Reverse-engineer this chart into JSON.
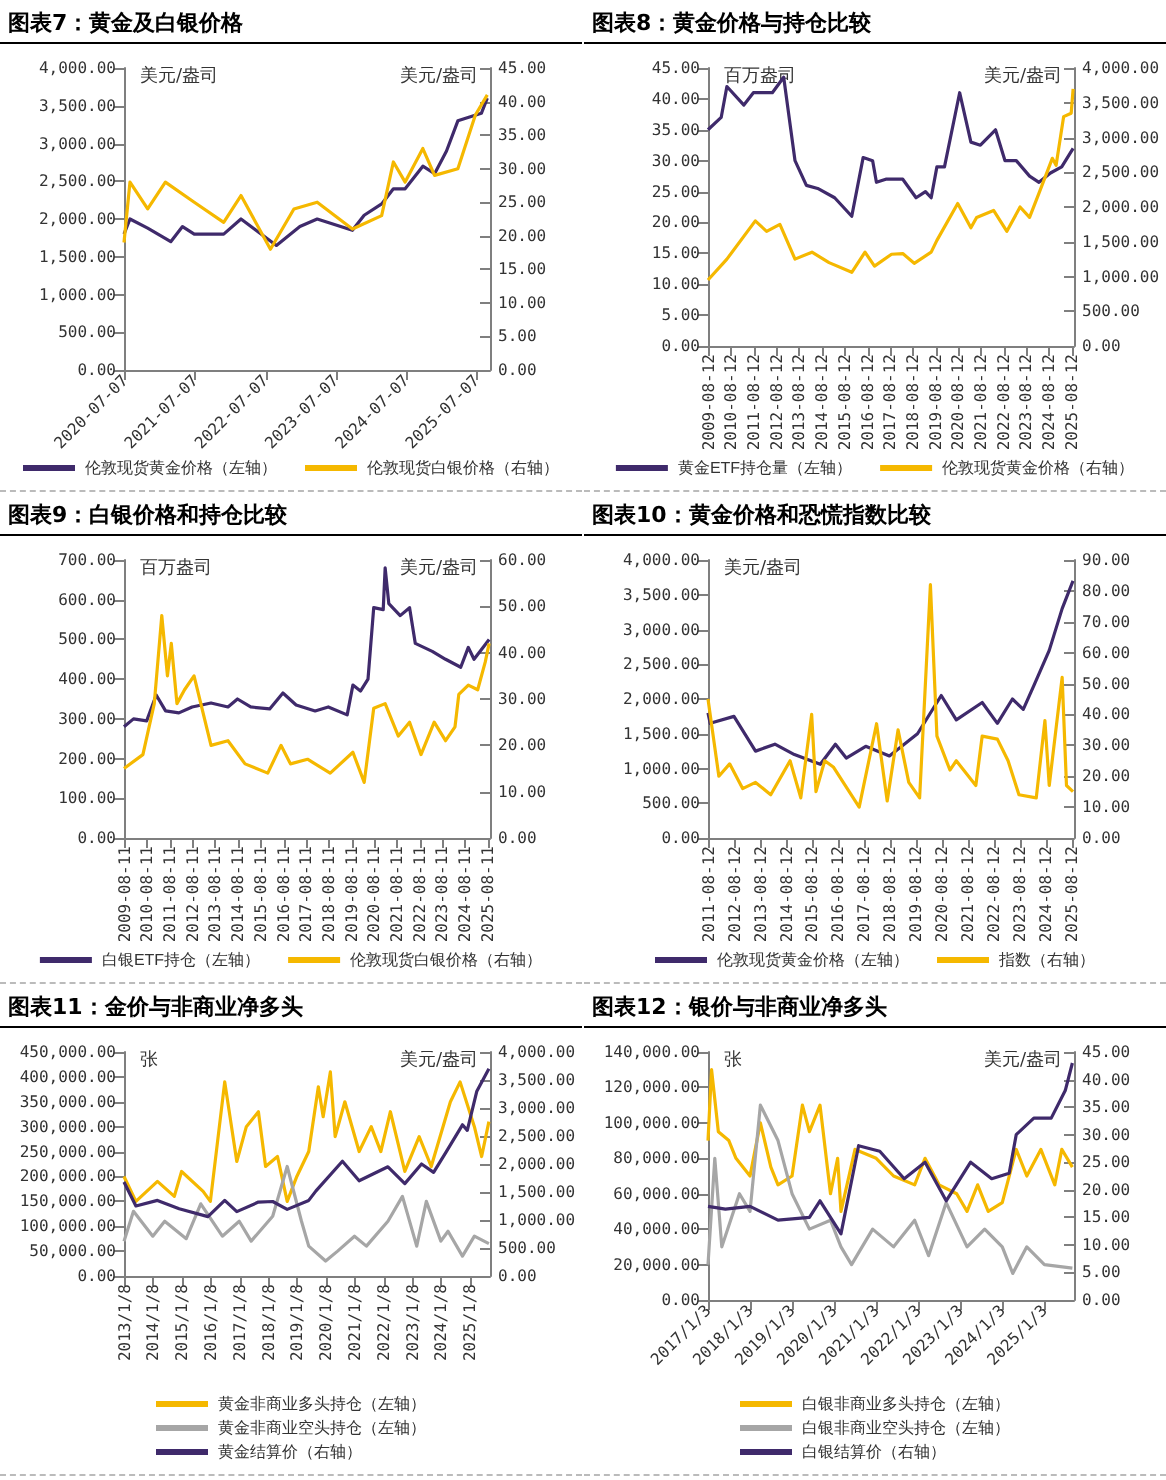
{
  "chart_data": [
    {
      "type": "line",
      "title": "图表7：黄金及白银价格",
      "annotations": [
        "美元/盎司",
        "美元/盎司"
      ],
      "legend": "bottom",
      "grid": false,
      "marker": "none",
      "xlim": [
        "2020-07-01",
        "2025-09-15"
      ],
      "xticks": [
        "2020-07-07",
        "2021-07-07",
        "2022-07-07",
        "2023-07-07",
        "2024-07-07",
        "2025-07-07"
      ],
      "ylim": [
        0,
        4000
      ],
      "yticks": [
        {
          "value": 0,
          "label": "0.00"
        },
        {
          "value": 500,
          "label": "500.00"
        },
        {
          "value": 1000,
          "label": "1,000.00"
        },
        {
          "value": 1500,
          "label": "1,500.00"
        },
        {
          "value": 2000,
          "label": "2,000.00"
        },
        {
          "value": 2500,
          "label": "2,500.00"
        },
        {
          "value": 3000,
          "label": "3,000.00"
        },
        {
          "value": 3500,
          "label": "3,500.00"
        },
        {
          "value": 4000,
          "label": "4,000.00"
        }
      ],
      "y2lim": [
        0,
        45
      ],
      "y2ticks": [
        {
          "value": 0,
          "label": "0.00"
        },
        {
          "value": 5,
          "label": "5.00"
        },
        {
          "value": 10,
          "label": "10.00"
        },
        {
          "value": 15,
          "label": "15.00"
        },
        {
          "value": 20,
          "label": "20.00"
        },
        {
          "value": 25,
          "label": "25.00"
        },
        {
          "value": 30,
          "label": "30.00"
        },
        {
          "value": 35,
          "label": "35.00"
        },
        {
          "value": 40,
          "label": "40.00"
        },
        {
          "value": 45,
          "label": "45.00"
        }
      ],
      "series": [
        {
          "name": "伦敦现货黄金价格（左轴）",
          "color": "#3f2a6b",
          "x": [
            "2020-07",
            "2020-08",
            "2020-11",
            "2021-03",
            "2021-05",
            "2021-07",
            "2021-12",
            "2022-03",
            "2022-09",
            "2023-01",
            "2023-04",
            "2023-10",
            "2023-12",
            "2024-03",
            "2024-05",
            "2024-07",
            "2024-10",
            "2024-12",
            "2025-02",
            "2025-04",
            "2025-06",
            "2025-08",
            "2025-09"
          ],
          "values": [
            1800,
            2000,
            1880,
            1700,
            1900,
            1800,
            1800,
            2000,
            1650,
            1900,
            2000,
            1850,
            2050,
            2200,
            2400,
            2400,
            2700,
            2600,
            2900,
            3300,
            3350,
            3400,
            3600
          ]
        },
        {
          "name": "伦敦现货白银价格（右轴）",
          "color": "#f5b800",
          "axis": "y2",
          "x": [
            "2020-07",
            "2020-08",
            "2020-11",
            "2021-02",
            "2021-07",
            "2021-12",
            "2022-03",
            "2022-08",
            "2022-12",
            "2023-04",
            "2023-10",
            "2024-03",
            "2024-05",
            "2024-07",
            "2024-10",
            "2024-12",
            "2025-04",
            "2025-07",
            "2025-09"
          ],
          "values": [
            19,
            28,
            24,
            28,
            25,
            22,
            26,
            18,
            24,
            25,
            21,
            23,
            31,
            28,
            33,
            29,
            30,
            38,
            41
          ]
        }
      ]
    },
    {
      "type": "line",
      "title": "图表8：黄金价格与持仓比较",
      "annotations": [
        "百万盎司",
        "美元/盎司"
      ],
      "legend": "bottom",
      "grid": false,
      "marker": "none",
      "xlim": [
        "2009-08-01",
        "2025-09-15"
      ],
      "xticks": [
        "2009-08-12",
        "2010-08-12",
        "2011-08-12",
        "2012-08-12",
        "2013-08-12",
        "2014-08-12",
        "2015-08-12",
        "2016-08-12",
        "2017-08-12",
        "2018-08-12",
        "2019-08-12",
        "2020-08-12",
        "2021-08-12",
        "2022-08-12",
        "2023-08-12",
        "2024-08-12",
        "2025-08-12"
      ],
      "ylim": [
        0,
        45
      ],
      "yticks": [
        {
          "value": 0,
          "label": "0.00"
        },
        {
          "value": 5,
          "label": "5.00"
        },
        {
          "value": 10,
          "label": "10.00"
        },
        {
          "value": 15,
          "label": "15.00"
        },
        {
          "value": 20,
          "label": "20.00"
        },
        {
          "value": 25,
          "label": "25.00"
        },
        {
          "value": 30,
          "label": "30.00"
        },
        {
          "value": 35,
          "label": "35.00"
        },
        {
          "value": 40,
          "label": "40.00"
        },
        {
          "value": 45,
          "label": "45.00"
        }
      ],
      "y2lim": [
        0,
        4000
      ],
      "y2ticks": [
        {
          "value": 0,
          "label": "0.00"
        },
        {
          "value": 500,
          "label": "500.00"
        },
        {
          "value": 1000,
          "label": "1,000.00"
        },
        {
          "value": 1500,
          "label": "1,500.00"
        },
        {
          "value": 2000,
          "label": "2,000.00"
        },
        {
          "value": 2500,
          "label": "2,500.00"
        },
        {
          "value": 3000,
          "label": "3,000.00"
        },
        {
          "value": 3500,
          "label": "3,500.00"
        },
        {
          "value": 4000,
          "label": "4,000.00"
        }
      ],
      "series": [
        {
          "name": "黄金ETF持仓量（左轴）",
          "color": "#3f2a6b",
          "x": [
            "2009-08",
            "2010-03",
            "2010-06",
            "2011-03",
            "2011-08",
            "2012-06",
            "2012-12",
            "2013-06",
            "2013-12",
            "2014-06",
            "2015-03",
            "2015-12",
            "2016-06",
            "2016-11",
            "2017-01",
            "2017-06",
            "2018-03",
            "2018-10",
            "2019-03",
            "2019-06",
            "2019-09",
            "2020-01",
            "2020-09",
            "2021-03",
            "2021-08",
            "2022-04",
            "2022-09",
            "2023-03",
            "2023-10",
            "2024-03",
            "2024-09",
            "2025-03",
            "2025-09"
          ],
          "values": [
            35,
            37,
            42,
            39,
            41,
            41,
            43.5,
            30,
            26,
            25.5,
            24,
            21,
            30.5,
            30,
            26.5,
            27,
            27,
            24,
            25,
            24,
            29,
            29,
            41,
            33,
            32.5,
            35,
            30,
            30,
            27.5,
            26.5,
            28,
            29,
            32
          ]
        },
        {
          "name": "伦敦现货黄金价格（右轴）",
          "color": "#f5b800",
          "axis": "y2",
          "x": [
            "2009-08",
            "2010-06",
            "2011-09",
            "2012-03",
            "2012-10",
            "2013-06",
            "2014-03",
            "2014-12",
            "2015-12",
            "2016-07",
            "2016-12",
            "2017-09",
            "2018-03",
            "2018-09",
            "2019-06",
            "2019-09",
            "2020-08",
            "2021-03",
            "2021-06",
            "2022-03",
            "2022-10",
            "2023-05",
            "2023-10",
            "2024-03",
            "2024-10",
            "2024-12",
            "2025-04",
            "2025-08",
            "2025-09"
          ],
          "values": [
            950,
            1250,
            1800,
            1650,
            1750,
            1250,
            1350,
            1200,
            1060,
            1350,
            1150,
            1320,
            1330,
            1190,
            1350,
            1520,
            2050,
            1700,
            1850,
            1950,
            1650,
            2000,
            1850,
            2200,
            2700,
            2600,
            3300,
            3350,
            3700
          ]
        }
      ]
    },
    {
      "type": "line",
      "title": "图表9：白银价格和持仓比较",
      "annotations": [
        "百万盎司",
        "美元/盎司"
      ],
      "legend": "bottom",
      "grid": false,
      "marker": "none",
      "xlim": [
        "2009-08-01",
        "2025-09-15"
      ],
      "xticks": [
        "2009-08-11",
        "2010-08-11",
        "2011-08-11",
        "2012-08-11",
        "2013-08-11",
        "2014-08-11",
        "2015-08-11",
        "2016-08-11",
        "2017-08-11",
        "2018-08-11",
        "2019-08-11",
        "2020-08-11",
        "2021-08-11",
        "2022-08-11",
        "2023-08-11",
        "2024-08-11",
        "2025-08-11"
      ],
      "ylim": [
        0,
        700
      ],
      "yticks": [
        {
          "value": 0,
          "label": "0.00"
        },
        {
          "value": 100,
          "label": "100.00"
        },
        {
          "value": 200,
          "label": "200.00"
        },
        {
          "value": 300,
          "label": "300.00"
        },
        {
          "value": 400,
          "label": "400.00"
        },
        {
          "value": 500,
          "label": "500.00"
        },
        {
          "value": 600,
          "label": "600.00"
        },
        {
          "value": 700,
          "label": "700.00"
        }
      ],
      "y2lim": [
        0,
        60
      ],
      "y2ticks": [
        {
          "value": 0,
          "label": "0.00"
        },
        {
          "value": 10,
          "label": "10.00"
        },
        {
          "value": 20,
          "label": "20.00"
        },
        {
          "value": 30,
          "label": "30.00"
        },
        {
          "value": 40,
          "label": "40.00"
        },
        {
          "value": 50,
          "label": "50.00"
        },
        {
          "value": 60,
          "label": "60.00"
        }
      ],
      "series": [
        {
          "name": "白银ETF持仓（左轴）",
          "color": "#3f2a6b",
          "x": [
            "2009-08",
            "2010-01",
            "2010-08",
            "2011-01",
            "2011-06",
            "2012-01",
            "2012-08",
            "2013-06",
            "2014-03",
            "2014-08",
            "2015-03",
            "2016-01",
            "2016-08",
            "2017-03",
            "2018-01",
            "2018-08",
            "2019-06",
            "2019-09",
            "2020-01",
            "2020-05",
            "2020-08",
            "2021-01",
            "2021-02",
            "2021-04",
            "2021-10",
            "2022-03",
            "2022-06",
            "2023-03",
            "2023-10",
            "2024-06",
            "2024-10",
            "2025-01",
            "2025-09"
          ],
          "values": [
            280,
            300,
            295,
            360,
            320,
            315,
            330,
            340,
            330,
            350,
            330,
            325,
            365,
            335,
            320,
            330,
            310,
            385,
            370,
            400,
            580,
            575,
            680,
            590,
            560,
            580,
            490,
            470,
            450,
            430,
            480,
            450,
            500
          ]
        },
        {
          "name": "伦敦现货白银价格（右轴）",
          "color": "#f5b800",
          "axis": "y2",
          "x": [
            "2009-08",
            "2010-06",
            "2010-12",
            "2011-04",
            "2011-07",
            "2011-09",
            "2011-12",
            "2012-04",
            "2012-09",
            "2013-06",
            "2014-03",
            "2014-12",
            "2015-12",
            "2016-07",
            "2016-12",
            "2017-09",
            "2018-09",
            "2019-09",
            "2020-03",
            "2020-08",
            "2021-02",
            "2021-09",
            "2022-03",
            "2022-09",
            "2023-04",
            "2023-10",
            "2024-03",
            "2024-05",
            "2024-10",
            "2025-03",
            "2025-07",
            "2025-09"
          ],
          "values": [
            15,
            18,
            29,
            48,
            35,
            42,
            29,
            32,
            35,
            20,
            21,
            16,
            14,
            20,
            16,
            17,
            14,
            18.5,
            12,
            28,
            29,
            22,
            25,
            18,
            25,
            21,
            24,
            31,
            33,
            32,
            38,
            42
          ]
        }
      ]
    },
    {
      "type": "line",
      "title": "图表10：黄金价格和恐慌指数比较",
      "annotations": [
        "美元/盎司"
      ],
      "legend": "bottom",
      "grid": false,
      "marker": "none",
      "xlim": [
        "2011-08-01",
        "2025-09-15"
      ],
      "xticks": [
        "2011-08-12",
        "2012-08-12",
        "2013-08-12",
        "2014-08-12",
        "2015-08-12",
        "2016-08-12",
        "2017-08-12",
        "2018-08-12",
        "2019-08-12",
        "2020-08-12",
        "2021-08-12",
        "2022-08-12",
        "2023-08-12",
        "2024-08-12",
        "2025-08-12"
      ],
      "ylim": [
        0,
        4000
      ],
      "yticks": [
        {
          "value": 0,
          "label": "0.00"
        },
        {
          "value": 500,
          "label": "500.00"
        },
        {
          "value": 1000,
          "label": "1,000.00"
        },
        {
          "value": 1500,
          "label": "1,500.00"
        },
        {
          "value": 2000,
          "label": "2,000.00"
        },
        {
          "value": 2500,
          "label": "2,500.00"
        },
        {
          "value": 3000,
          "label": "3,000.00"
        },
        {
          "value": 3500,
          "label": "3,500.00"
        },
        {
          "value": 4000,
          "label": "4,000.00"
        }
      ],
      "y2lim": [
        0,
        90
      ],
      "y2ticks": [
        {
          "value": 0,
          "label": "0.00"
        },
        {
          "value": 10,
          "label": "10.00"
        },
        {
          "value": 20,
          "label": "20.00"
        },
        {
          "value": 30,
          "label": "30.00"
        },
        {
          "value": 40,
          "label": "40.00"
        },
        {
          "value": 50,
          "label": "50.00"
        },
        {
          "value": 60,
          "label": "60.00"
        },
        {
          "value": 70,
          "label": "70.00"
        },
        {
          "value": 80,
          "label": "80.00"
        },
        {
          "value": 90,
          "label": "90.00"
        }
      ],
      "series": [
        {
          "name": "伦敦现货黄金价格（左轴）",
          "color": "#3f2a6b",
          "x": [
            "2011-08",
            "2011-09",
            "2012-08",
            "2013-06",
            "2014-03",
            "2014-12",
            "2015-12",
            "2016-07",
            "2016-12",
            "2017-09",
            "2018-08",
            "2019-09",
            "2020-08",
            "2021-03",
            "2022-03",
            "2022-10",
            "2023-05",
            "2023-10",
            "2024-03",
            "2024-10",
            "2025-04",
            "2025-09"
          ],
          "values": [
            1800,
            1650,
            1750,
            1250,
            1350,
            1200,
            1060,
            1350,
            1150,
            1320,
            1180,
            1500,
            2050,
            1700,
            1950,
            1650,
            2000,
            1850,
            2200,
            2700,
            3300,
            3700
          ]
        },
        {
          "name": "指数（右轴）",
          "color": "#f5b800",
          "axis": "y2",
          "x": [
            "2011-08",
            "2011-10",
            "2012-01",
            "2012-06",
            "2012-12",
            "2013-06",
            "2014-01",
            "2014-10",
            "2015-03",
            "2015-08",
            "2015-10",
            "2016-02",
            "2016-06",
            "2017-06",
            "2018-02",
            "2018-07",
            "2018-12",
            "2019-05",
            "2019-10",
            "2020-03",
            "2020-06",
            "2020-12",
            "2021-03",
            "2021-12",
            "2022-03",
            "2022-10",
            "2023-03",
            "2023-08",
            "2024-04",
            "2024-08",
            "2024-10",
            "2025-04",
            "2025-06",
            "2025-09"
          ],
          "values": [
            45,
            35,
            20,
            24,
            16,
            18,
            14,
            25,
            13,
            40,
            15,
            25,
            23,
            10,
            37,
            12,
            35,
            18,
            13,
            82,
            33,
            22,
            25,
            17,
            33,
            32,
            25,
            14,
            13,
            38,
            17,
            52,
            17,
            15
          ]
        }
      ]
    },
    {
      "type": "line",
      "title": "图表11：金价与非商业净多头",
      "annotations": [
        "张",
        "美元/盎司"
      ],
      "legend": "bottom",
      "grid": false,
      "marker": "none",
      "xlim": [
        "2013-01-01",
        "2025-09-15"
      ],
      "xticks": [
        {
          "value": "2013-01-08",
          "label": "2013/1/8"
        },
        {
          "value": "2014-01-08",
          "label": "2014/1/8"
        },
        {
          "value": "2015-01-08",
          "label": "2015/1/8"
        },
        {
          "value": "2016-01-08",
          "label": "2016/1/8"
        },
        {
          "value": "2017-01-08",
          "label": "2017/1/8"
        },
        {
          "value": "2018-01-08",
          "label": "2018/1/8"
        },
        {
          "value": "2019-01-08",
          "label": "2019/1/8"
        },
        {
          "value": "2020-01-08",
          "label": "2020/1/8"
        },
        {
          "value": "2021-01-08",
          "label": "2021/1/8"
        },
        {
          "value": "2022-01-08",
          "label": "2022/1/8"
        },
        {
          "value": "2023-01-08",
          "label": "2023/1/8"
        },
        {
          "value": "2024-01-08",
          "label": "2024/1/8"
        },
        {
          "value": "2025-01-08",
          "label": "2025/1/8"
        }
      ],
      "ylim": [
        0,
        450000
      ],
      "yticks": [
        {
          "value": 0,
          "label": "0.00"
        },
        {
          "value": 50000,
          "label": "50,000.00"
        },
        {
          "value": 100000,
          "label": "100,000.00"
        },
        {
          "value": 150000,
          "label": "150,000.00"
        },
        {
          "value": 200000,
          "label": "200,000.00"
        },
        {
          "value": 250000,
          "label": "250,000.00"
        },
        {
          "value": 300000,
          "label": "300,000.00"
        },
        {
          "value": 350000,
          "label": "350,000.00"
        },
        {
          "value": 400000,
          "label": "400,000.00"
        },
        {
          "value": 450000,
          "label": "450,000.00"
        }
      ],
      "y2lim": [
        0,
        4000
      ],
      "y2ticks": [
        {
          "value": 0,
          "label": "0.00"
        },
        {
          "value": 500,
          "label": "500.00"
        },
        {
          "value": 1000,
          "label": "1,000.00"
        },
        {
          "value": 1500,
          "label": "1,500.00"
        },
        {
          "value": 2000,
          "label": "2,000.00"
        },
        {
          "value": 2500,
          "label": "2,500.00"
        },
        {
          "value": 3000,
          "label": "3,000.00"
        },
        {
          "value": 3500,
          "label": "3,500.00"
        },
        {
          "value": 4000,
          "label": "4,000.00"
        }
      ],
      "series": [
        {
          "name": "黄金非商业多头持仓（左轴）",
          "color": "#f5b800",
          "x": [
            "2013-01",
            "2013-06",
            "2014-03",
            "2014-10",
            "2015-01",
            "2015-10",
            "2016-01",
            "2016-07",
            "2016-12",
            "2017-04",
            "2017-09",
            "2017-12",
            "2018-05",
            "2018-09",
            "2019-01",
            "2019-06",
            "2019-10",
            "2019-12",
            "2020-03",
            "2020-05",
            "2020-09",
            "2021-03",
            "2021-08",
            "2021-12",
            "2022-04",
            "2022-10",
            "2023-04",
            "2023-09",
            "2024-05",
            "2024-09",
            "2025-03",
            "2025-06",
            "2025-09"
          ],
          "values": [
            200000,
            150000,
            190000,
            160000,
            210000,
            170000,
            150000,
            390000,
            230000,
            300000,
            330000,
            220000,
            240000,
            150000,
            200000,
            250000,
            380000,
            320000,
            410000,
            280000,
            350000,
            250000,
            300000,
            250000,
            330000,
            210000,
            280000,
            220000,
            350000,
            390000,
            300000,
            240000,
            310000
          ]
        },
        {
          "name": "黄金非商业空头持仓（左轴）",
          "color": "#a6a6a6",
          "x": [
            "2013-01",
            "2013-05",
            "2014-01",
            "2014-06",
            "2015-03",
            "2015-09",
            "2016-06",
            "2017-01",
            "2017-06",
            "2018-03",
            "2018-09",
            "2019-03",
            "2019-06",
            "2020-01",
            "2020-06",
            "2021-01",
            "2021-06",
            "2022-03",
            "2022-09",
            "2023-03",
            "2023-07",
            "2024-01",
            "2024-04",
            "2024-10",
            "2025-03",
            "2025-09"
          ],
          "values": [
            70000,
            130000,
            80000,
            110000,
            75000,
            145000,
            80000,
            110000,
            70000,
            120000,
            220000,
            110000,
            60000,
            30000,
            50000,
            80000,
            60000,
            110000,
            160000,
            60000,
            150000,
            70000,
            90000,
            40000,
            80000,
            65000
          ]
        },
        {
          "name": "黄金结算价（右轴）",
          "color": "#3f2a6b",
          "axis": "y2",
          "x": [
            "2013-01",
            "2013-06",
            "2014-03",
            "2014-12",
            "2015-12",
            "2016-07",
            "2016-12",
            "2017-09",
            "2018-03",
            "2018-09",
            "2019-06",
            "2019-09",
            "2020-08",
            "2021-03",
            "2022-03",
            "2022-10",
            "2023-05",
            "2023-10",
            "2024-03",
            "2024-10",
            "2024-12",
            "2025-04",
            "2025-09"
          ],
          "values": [
            1680,
            1250,
            1350,
            1200,
            1060,
            1350,
            1150,
            1320,
            1330,
            1190,
            1350,
            1520,
            2050,
            1700,
            1950,
            1650,
            2000,
            1850,
            2200,
            2700,
            2600,
            3300,
            3700
          ]
        }
      ]
    },
    {
      "type": "line",
      "title": "图表12：银价与非商业净多头",
      "annotations": [
        "张",
        "美元/盎司"
      ],
      "legend": "bottom",
      "grid": false,
      "marker": "none",
      "xlim": [
        "2017-01-01",
        "2025-09-15"
      ],
      "xticks": [
        {
          "value": "2017-01-03",
          "label": "2017/1/3"
        },
        {
          "value": "2018-01-03",
          "label": "2018/1/3"
        },
        {
          "value": "2019-01-03",
          "label": "2019/1/3"
        },
        {
          "value": "2020-01-03",
          "label": "2020/1/3"
        },
        {
          "value": "2021-01-03",
          "label": "2021/1/3"
        },
        {
          "value": "2022-01-03",
          "label": "2022/1/3"
        },
        {
          "value": "2023-01-03",
          "label": "2023/1/3"
        },
        {
          "value": "2024-01-03",
          "label": "2024/1/3"
        },
        {
          "value": "2025-01-03",
          "label": "2025/1/3"
        }
      ],
      "ylim": [
        0,
        140000
      ],
      "yticks": [
        {
          "value": 0,
          "label": "0.00"
        },
        {
          "value": 20000,
          "label": "20,000.00"
        },
        {
          "value": 40000,
          "label": "40,000.00"
        },
        {
          "value": 60000,
          "label": "60,000.00"
        },
        {
          "value": 80000,
          "label": "80,000.00"
        },
        {
          "value": 100000,
          "label": "100,000.00"
        },
        {
          "value": 120000,
          "label": "120,000.00"
        },
        {
          "value": 140000,
          "label": "140,000.00"
        }
      ],
      "y2lim": [
        0,
        45
      ],
      "y2ticks": [
        {
          "value": 0,
          "label": "0.00"
        },
        {
          "value": 5,
          "label": "5.00"
        },
        {
          "value": 10,
          "label": "10.00"
        },
        {
          "value": 15,
          "label": "15.00"
        },
        {
          "value": 20,
          "label": "20.00"
        },
        {
          "value": 25,
          "label": "25.00"
        },
        {
          "value": 30,
          "label": "30.00"
        },
        {
          "value": 35,
          "label": "35.00"
        },
        {
          "value": 40,
          "label": "40.00"
        },
        {
          "value": 45,
          "label": "45.00"
        }
      ],
      "series": [
        {
          "name": "白银非商业多头持仓（左轴）",
          "color": "#f5b800",
          "x": [
            "2017-01",
            "2017-02",
            "2017-04",
            "2017-07",
            "2017-09",
            "2018-01",
            "2018-04",
            "2018-07",
            "2018-09",
            "2019-01",
            "2019-04",
            "2019-06",
            "2019-09",
            "2019-12",
            "2020-02",
            "2020-03",
            "2020-07",
            "2021-01",
            "2021-06",
            "2021-12",
            "2022-03",
            "2022-07",
            "2022-12",
            "2023-03",
            "2023-06",
            "2023-09",
            "2024-01",
            "2024-05",
            "2024-08",
            "2024-12",
            "2025-04",
            "2025-06",
            "2025-09"
          ],
          "values": [
            90000,
            130000,
            95000,
            90000,
            80000,
            70000,
            100000,
            75000,
            65000,
            70000,
            110000,
            95000,
            110000,
            60000,
            80000,
            50000,
            85000,
            80000,
            70000,
            65000,
            80000,
            65000,
            60000,
            50000,
            65000,
            50000,
            55000,
            85000,
            70000,
            85000,
            65000,
            85000,
            75000
          ]
        },
        {
          "name": "白银非商业空头持仓（左轴）",
          "color": "#a6a6a6",
          "x": [
            "2017-01",
            "2017-03",
            "2017-05",
            "2017-10",
            "2018-01",
            "2018-04",
            "2018-09",
            "2019-01",
            "2019-06",
            "2019-12",
            "2020-03",
            "2020-06",
            "2020-12",
            "2021-06",
            "2021-12",
            "2022-04",
            "2022-09",
            "2023-03",
            "2023-08",
            "2024-01",
            "2024-04",
            "2024-08",
            "2025-01",
            "2025-09"
          ],
          "values": [
            20000,
            80000,
            30000,
            60000,
            50000,
            110000,
            90000,
            60000,
            40000,
            45000,
            30000,
            20000,
            40000,
            30000,
            45000,
            25000,
            55000,
            30000,
            40000,
            30000,
            15000,
            30000,
            20000,
            18000
          ]
        },
        {
          "name": "白银结算价（右轴）",
          "color": "#3f2a6b",
          "axis": "y2",
          "x": [
            "2017-01",
            "2017-06",
            "2018-01",
            "2018-09",
            "2019-06",
            "2019-09",
            "2020-03",
            "2020-08",
            "2021-02",
            "2021-09",
            "2022-03",
            "2022-09",
            "2023-04",
            "2023-10",
            "2024-03",
            "2024-05",
            "2024-10",
            "2025-03",
            "2025-07",
            "2025-09"
          ],
          "values": [
            17,
            16.5,
            17,
            14.5,
            15,
            18,
            12,
            28,
            27,
            22,
            25,
            18,
            25,
            22,
            23,
            30,
            33,
            33,
            38,
            43
          ]
        }
      ]
    }
  ]
}
